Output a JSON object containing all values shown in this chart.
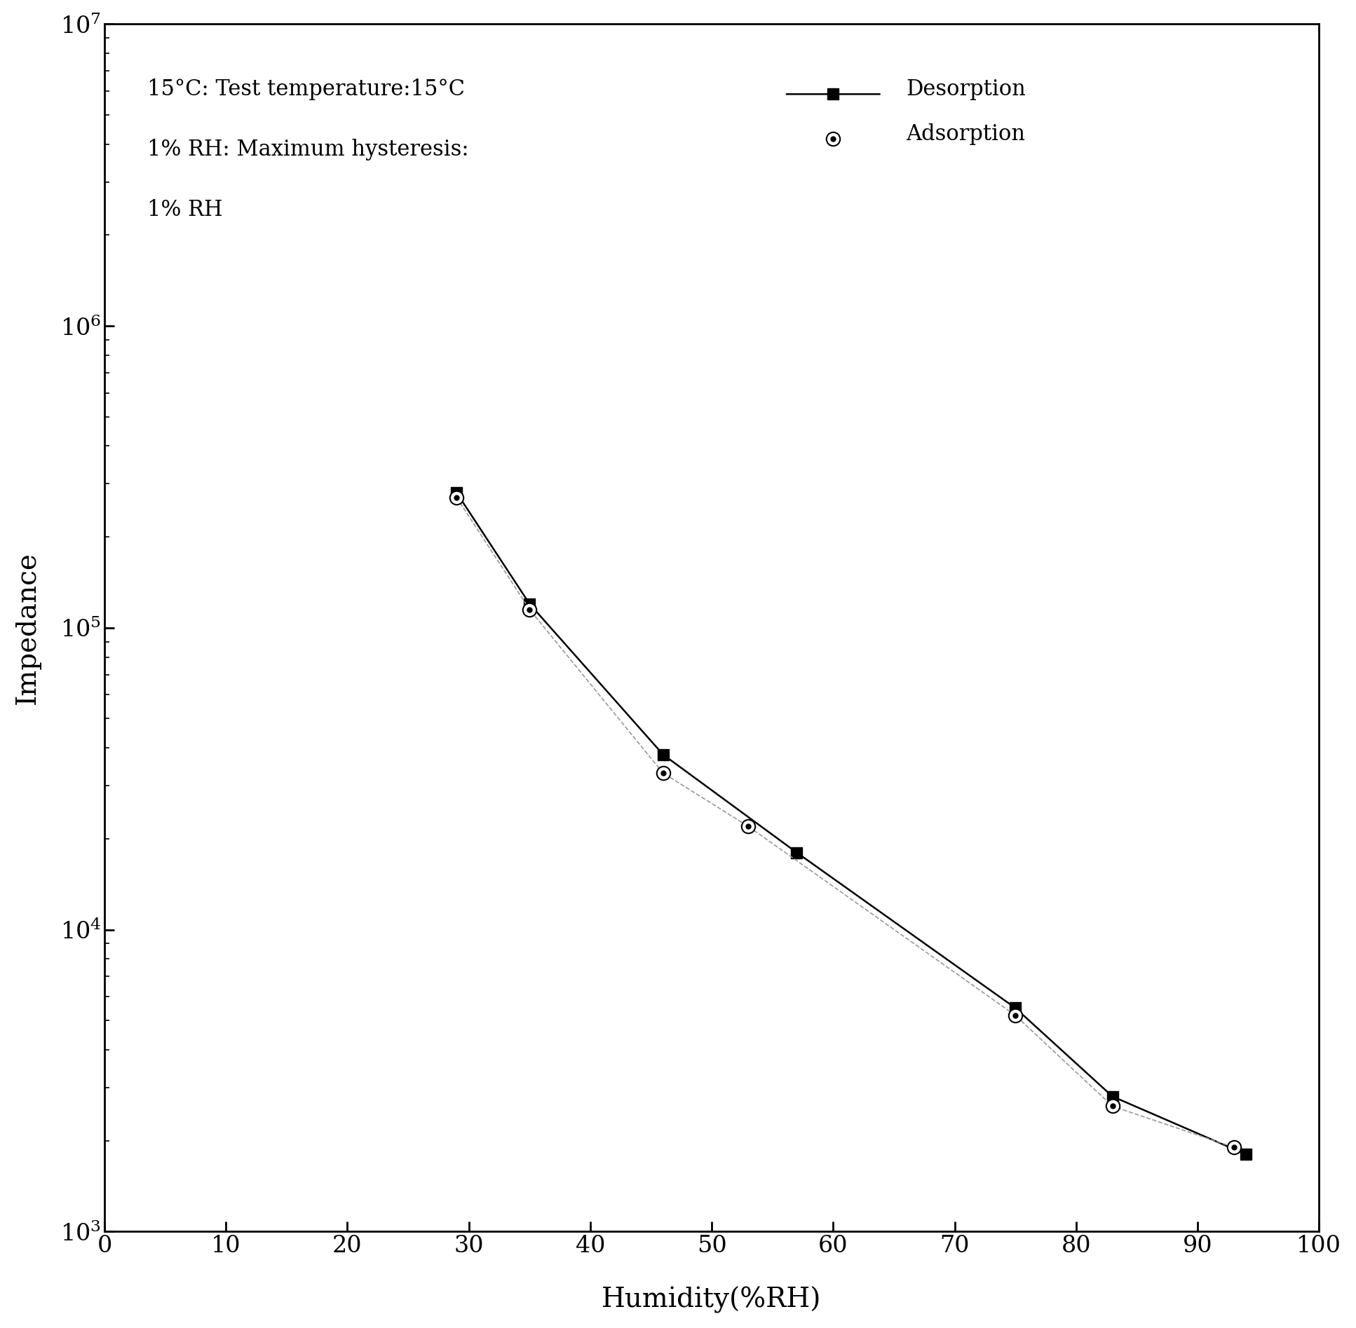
{
  "desorption_x": [
    29,
    35,
    46,
    57,
    75,
    83,
    94
  ],
  "desorption_y": [
    280000,
    120000,
    38000,
    18000,
    5500,
    2800,
    1800
  ],
  "adsorption_x": [
    29,
    35,
    46,
    53,
    75,
    83,
    93
  ],
  "adsorption_y": [
    270000,
    115000,
    33000,
    22000,
    5200,
    2600,
    1900
  ],
  "xlabel": "Humidity(%RH)",
  "ylabel": "Impedance",
  "xlim": [
    0,
    100
  ],
  "ylim_log": [
    3,
    7
  ],
  "xticks": [
    0,
    10,
    20,
    30,
    40,
    50,
    60,
    70,
    80,
    90,
    100
  ],
  "legend_text_line1": "15°C: Test temperature:15°C",
  "legend_text_line2": "1% RH: Maximum hysteresis:",
  "legend_text_line3": "1% RH",
  "legend_desorption": "Desorption",
  "legend_adsorption": "Adsorption",
  "bg_color": "#ffffff",
  "line_color": "#000000",
  "label_fontsize": 28,
  "tick_fontsize": 24,
  "legend_fontsize": 22
}
